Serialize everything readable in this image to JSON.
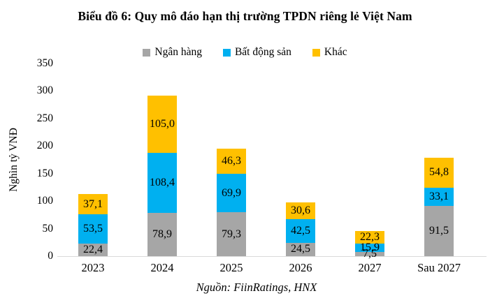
{
  "title": "Biểu đồ 6: Quy mô đáo hạn thị trường TPDN riêng lẻ Việt Nam",
  "source": "Nguồn: FiinRatings, HNX",
  "chart_data": {
    "type": "bar",
    "stacked": true,
    "title": "Biểu đồ 6: Quy mô đáo hạn thị trường TPDN riêng lẻ Việt Nam",
    "xlabel": "",
    "ylabel": "Nghìn tỷ VNĐ",
    "ylim": [
      0,
      350
    ],
    "ytick_step": 50,
    "grid": false,
    "legend_position": "top",
    "categories": [
      "2023",
      "2024",
      "2025",
      "2026",
      "2027",
      "Sau 2027"
    ],
    "series": [
      {
        "name": "Ngân hàng",
        "color": "#A6A6A6",
        "values": [
          22.4,
          78.9,
          79.3,
          24.5,
          7.5,
          91.5
        ],
        "labels": [
          "22,4",
          "78,9",
          "79,3",
          "24,5",
          "7,5",
          "91,5"
        ]
      },
      {
        "name": "Bất động sản",
        "color": "#00B0F0",
        "values": [
          53.5,
          108.4,
          69.9,
          42.5,
          15.9,
          33.1
        ],
        "labels": [
          "53,5",
          "108,4",
          "69,9",
          "42,5",
          "15,9",
          "33,1"
        ]
      },
      {
        "name": "Khác",
        "color": "#FFC000",
        "values": [
          37.1,
          105.0,
          46.3,
          30.6,
          22.3,
          54.8
        ],
        "labels": [
          "37,1",
          "105,0",
          "46,3",
          "30,6",
          "22,3",
          "54,8"
        ]
      }
    ]
  }
}
